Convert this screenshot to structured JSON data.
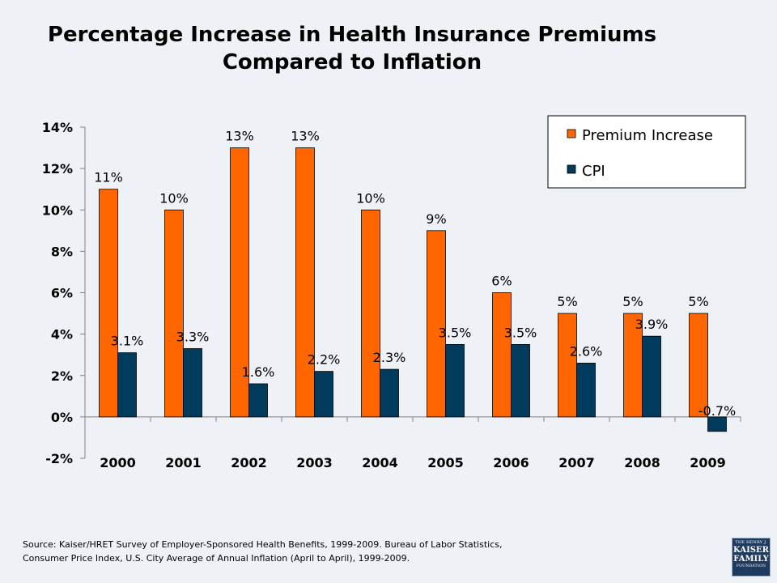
{
  "title_line1": "Percentage Increase in Health Insurance Premiums",
  "title_line2": "Compared to Inflation",
  "source_line1": "Source: Kaiser/HRET Survey of Employer-Sponsored Health Benefits, 1999-2009.  Bureau of Labor Statistics,",
  "source_line2": "Consumer Price Index, U.S. City Average of Annual Inflation (April to April), 1999-2009.",
  "logo": {
    "line1": "THE HENRY J.",
    "line2a": "KAISER",
    "line2b": "FAMILY",
    "line3": "FOUNDATION"
  },
  "chart_data": {
    "type": "bar",
    "categories": [
      "2000",
      "2001",
      "2002",
      "2003",
      "2004",
      "2005",
      "2006",
      "2007",
      "2008",
      "2009"
    ],
    "series": [
      {
        "name": "Premium Increase",
        "values": [
          11,
          10,
          13,
          13,
          10,
          9,
          6,
          5,
          5,
          5
        ],
        "labels": [
          "11%",
          "10%",
          "13%",
          "13%",
          "10%",
          "9%",
          "6%",
          "5%",
          "5%",
          "5%"
        ],
        "color": "#ff6600"
      },
      {
        "name": "CPI",
        "values": [
          3.1,
          3.3,
          1.6,
          2.2,
          2.3,
          3.5,
          3.5,
          2.6,
          3.9,
          -0.7
        ],
        "labels": [
          "3.1%",
          "3.3%",
          "1.6%",
          "2.2%",
          "2.3%",
          "3.5%",
          "3.5%",
          "2.6%",
          "3.9%",
          "-0.7%"
        ],
        "color": "#003a5c"
      }
    ],
    "ylim": [
      -2,
      14
    ],
    "yticks": [
      -2,
      0,
      2,
      4,
      6,
      8,
      10,
      12,
      14
    ],
    "ytick_labels": [
      "-2%",
      "0%",
      "2%",
      "4%",
      "6%",
      "8%",
      "10%",
      "12%",
      "14%"
    ],
    "legend_position": "top-right",
    "grid": false
  }
}
